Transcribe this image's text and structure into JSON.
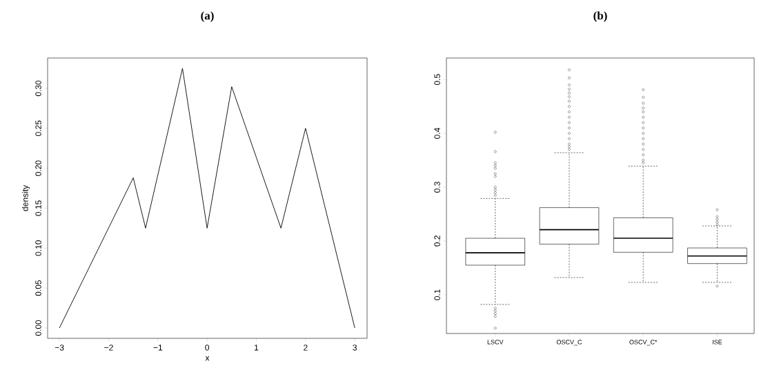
{
  "chart_data": [
    {
      "type": "line",
      "title": "(a)",
      "xlabel": "x",
      "ylabel": "density",
      "color": "#000000",
      "x": [
        -3,
        -1.5,
        -1.25,
        -0.5,
        0,
        0.5,
        1.5,
        2,
        3
      ],
      "values": [
        0,
        0.188,
        0.125,
        0.325,
        0.125,
        0.302,
        0.125,
        0.25,
        0
      ],
      "xlim": [
        -3.24,
        3.25
      ],
      "ylim": [
        -0.013,
        0.338
      ],
      "xticks": [
        {
          "value": -3,
          "label": "−3"
        },
        {
          "value": -2,
          "label": "−2"
        },
        {
          "value": -1,
          "label": "−1"
        },
        0,
        1,
        2,
        3
      ],
      "yticks": [
        {
          "value": 0,
          "label": "0.00"
        },
        {
          "value": 0.05,
          "label": "0.05"
        },
        {
          "value": 0.1,
          "label": "0.10"
        },
        {
          "value": 0.15,
          "label": "0.15"
        },
        {
          "value": 0.2,
          "label": "0.20"
        },
        {
          "value": 0.25,
          "label": "0.25"
        },
        {
          "value": 0.3,
          "label": "0.30"
        }
      ]
    },
    {
      "type": "box",
      "title": "(b)",
      "color": "#000000",
      "categories": [
        "LSCV",
        "OSCV_C",
        "OSCV_C*",
        "ISE"
      ],
      "boxes": [
        {
          "low": 0.082,
          "q1": 0.155,
          "median": 0.178,
          "q3": 0.205,
          "high": 0.279,
          "outliers": [
            0.402,
            0.366,
            0.345,
            0.34,
            0.335,
            0.325,
            0.32,
            0.3,
            0.295,
            0.29,
            0.285,
            0.075,
            0.07,
            0.065,
            0.06,
            0.038
          ]
        },
        {
          "low": 0.132,
          "q1": 0.194,
          "median": 0.221,
          "q3": 0.262,
          "high": 0.364,
          "outliers": [
            0.518,
            0.503,
            0.49,
            0.482,
            0.475,
            0.468,
            0.46,
            0.45,
            0.44,
            0.43,
            0.42,
            0.41,
            0.4,
            0.39,
            0.38,
            0.375,
            0.37
          ]
        },
        {
          "low": 0.123,
          "q1": 0.179,
          "median": 0.205,
          "q3": 0.243,
          "high": 0.339,
          "outliers": [
            0.481,
            0.467,
            0.456,
            0.447,
            0.44,
            0.43,
            0.42,
            0.41,
            0.4,
            0.39,
            0.38,
            0.37,
            0.36,
            0.35,
            0.345
          ]
        },
        {
          "low": 0.123,
          "q1": 0.158,
          "median": 0.172,
          "q3": 0.187,
          "high": 0.228,
          "outliers": [
            0.258,
            0.245,
            0.24,
            0.235,
            0.23,
            0.116
          ]
        }
      ],
      "ylim": [
        0.028,
        0.54
      ],
      "yticks": [
        0.1,
        0.2,
        0.3,
        0.4,
        0.5
      ]
    }
  ]
}
